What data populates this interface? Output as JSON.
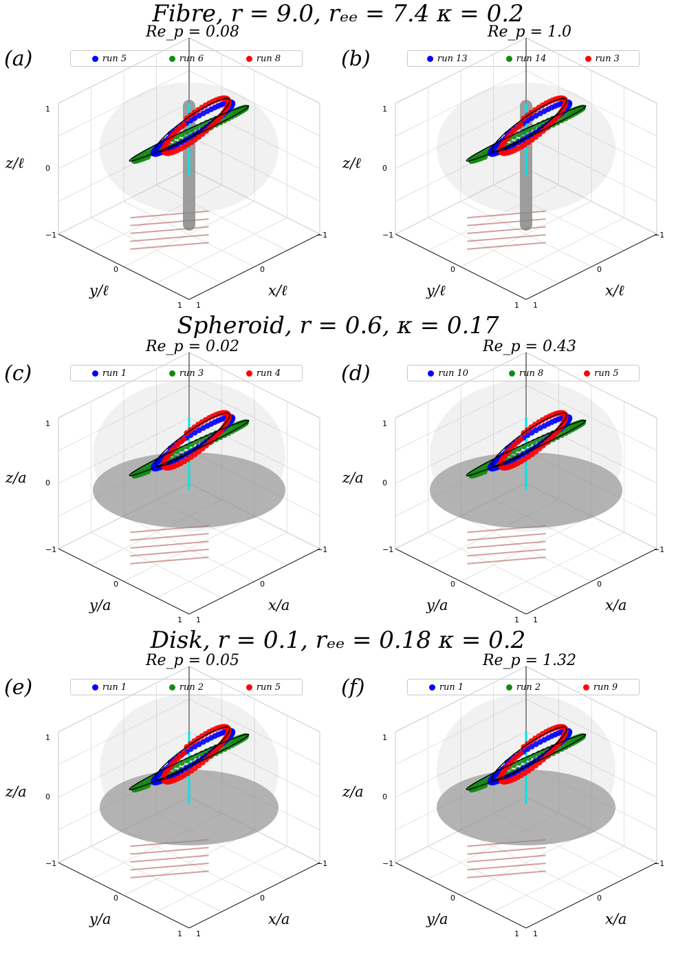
{
  "rows": [
    {
      "title": "Fibre,  r = 9.0,  rₑₑ = 7.4  κ = 0.2"
    },
    {
      "title": "Spheroid,  r = 0.6,  κ = 0.17"
    },
    {
      "title": "Disk,  r = 0.1,  rₑₑ = 0.18  κ = 0.2"
    }
  ],
  "colors": {
    "run_a": "#0000ff",
    "run_b": "#138a13",
    "run_c": "#ff0000",
    "body": "#808080",
    "arrow": "#b05050",
    "axis_marker": "#00e5e5"
  },
  "chart_data": [
    {
      "type": "scatter",
      "panel": "(a)",
      "title": "Re_p = 0.08",
      "shape": "fibre",
      "series": [
        {
          "name": "run  5"
        },
        {
          "name": "run  6"
        },
        {
          "name": "run  8"
        }
      ],
      "xlabel": "x/ℓ",
      "ylabel": "y/ℓ",
      "zlabel": "z/ℓ",
      "xlim": [
        -1,
        1
      ],
      "ylim": [
        -1,
        1
      ],
      "zlim": [
        -1,
        1
      ],
      "grid": true,
      "legend": "top"
    },
    {
      "type": "scatter",
      "panel": "(b)",
      "title": "Re_p = 1.0",
      "shape": "fibre",
      "series": [
        {
          "name": "run  13"
        },
        {
          "name": "run  14"
        },
        {
          "name": "run  3"
        }
      ],
      "xlabel": "x/ℓ",
      "ylabel": "y/ℓ",
      "zlabel": "z/ℓ",
      "xlim": [
        -1,
        1
      ],
      "ylim": [
        -1,
        1
      ],
      "zlim": [
        -1,
        1
      ],
      "grid": true,
      "legend": "top"
    },
    {
      "type": "scatter",
      "panel": "(c)",
      "title": "Re_p = 0.02",
      "shape": "spheroid",
      "series": [
        {
          "name": "run  1"
        },
        {
          "name": "run  3"
        },
        {
          "name": "run  4"
        }
      ],
      "xlabel": "x/a",
      "ylabel": "y/a",
      "zlabel": "z/a",
      "xlim": [
        -1,
        1
      ],
      "ylim": [
        -1,
        1
      ],
      "zlim": [
        -1,
        1
      ],
      "grid": true,
      "legend": "top"
    },
    {
      "type": "scatter",
      "panel": "(d)",
      "title": "Re_p = 0.43",
      "shape": "spheroid",
      "series": [
        {
          "name": "run  10"
        },
        {
          "name": "run  8"
        },
        {
          "name": "run  5"
        }
      ],
      "xlabel": "x/a",
      "ylabel": "y/a",
      "zlabel": "z/a",
      "xlim": [
        -1,
        1
      ],
      "ylim": [
        -1,
        1
      ],
      "zlim": [
        -1,
        1
      ],
      "grid": true,
      "legend": "top"
    },
    {
      "type": "scatter",
      "panel": "(e)",
      "title": "Re_p = 0.05",
      "shape": "disk",
      "series": [
        {
          "name": "run  1"
        },
        {
          "name": "run  2"
        },
        {
          "name": "run  5"
        }
      ],
      "xlabel": "x/a",
      "ylabel": "y/a",
      "zlabel": "z/a",
      "xlim": [
        -1,
        1
      ],
      "ylim": [
        -1,
        1
      ],
      "zlim": [
        -1,
        1
      ],
      "grid": true,
      "legend": "top"
    },
    {
      "type": "scatter",
      "panel": "(f)",
      "title": "Re_p = 1.32",
      "shape": "disk",
      "series": [
        {
          "name": "run  1"
        },
        {
          "name": "run  2"
        },
        {
          "name": "run  9"
        }
      ],
      "xlabel": "x/a",
      "ylabel": "y/a",
      "zlabel": "z/a",
      "xlim": [
        -1,
        1
      ],
      "ylim": [
        -1,
        1
      ],
      "zlim": [
        -1,
        1
      ],
      "grid": true,
      "legend": "top"
    }
  ],
  "ticks": {
    "neg": "−1",
    "zero": "0",
    "pos": "1"
  }
}
